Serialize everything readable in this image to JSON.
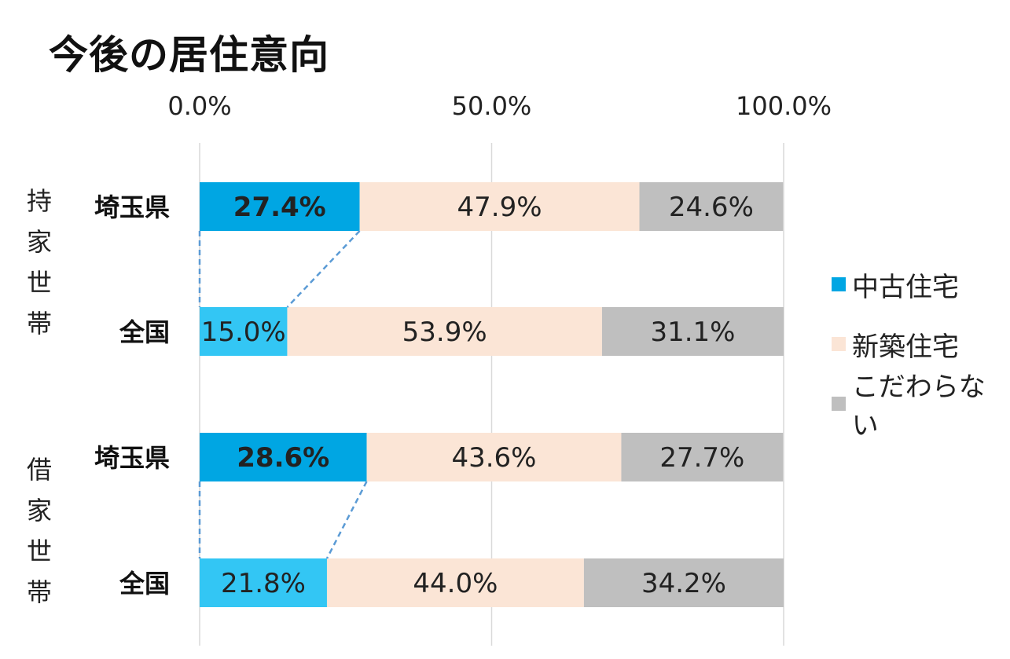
{
  "title": "今後の居住意向",
  "chart_data": {
    "type": "bar",
    "orientation": "horizontal",
    "stacked": "percent",
    "title": "今後の居住意向",
    "xlim": [
      0,
      100
    ],
    "x_ticks": [
      "0.0%",
      "50.0%",
      "100.0%"
    ],
    "grid": true,
    "legend_position": "right",
    "groups": [
      {
        "name": "持家世帯",
        "categories": [
          "埼玉県",
          "全国"
        ]
      },
      {
        "name": "借家世帯",
        "categories": [
          "埼玉県",
          "全国"
        ]
      }
    ],
    "categories": [
      "埼玉県",
      "全国",
      "埼玉県",
      "全国"
    ],
    "series": [
      {
        "name": "中古住宅",
        "values": [
          27.4,
          15.0,
          28.6,
          21.8
        ],
        "labels": [
          "27.4%",
          "15.0%",
          "28.6%",
          "21.8%"
        ]
      },
      {
        "name": "新築住宅",
        "values": [
          47.9,
          53.9,
          43.6,
          44.0
        ],
        "labels": [
          "47.9%",
          "53.9%",
          "43.6%",
          "44.0%"
        ]
      },
      {
        "name": "こだわらない",
        "values": [
          24.6,
          31.1,
          27.7,
          34.2
        ],
        "labels": [
          "24.6%",
          "31.1%",
          "27.7%",
          "34.2%"
        ]
      }
    ],
    "colors": {
      "used_saitama": "#00A6E3",
      "used_national": "#33C6F4",
      "new": "#FBE5D6",
      "no_preference": "#BFBFBF",
      "connector": "#5B9BD5",
      "grid": "#D9D9D9"
    }
  },
  "legend": [
    {
      "label": "中古住宅",
      "color": "#00A6E3"
    },
    {
      "label": "新築住宅",
      "color": "#FBE5D6"
    },
    {
      "label": "こだわらない",
      "color": "#BFBFBF"
    }
  ]
}
